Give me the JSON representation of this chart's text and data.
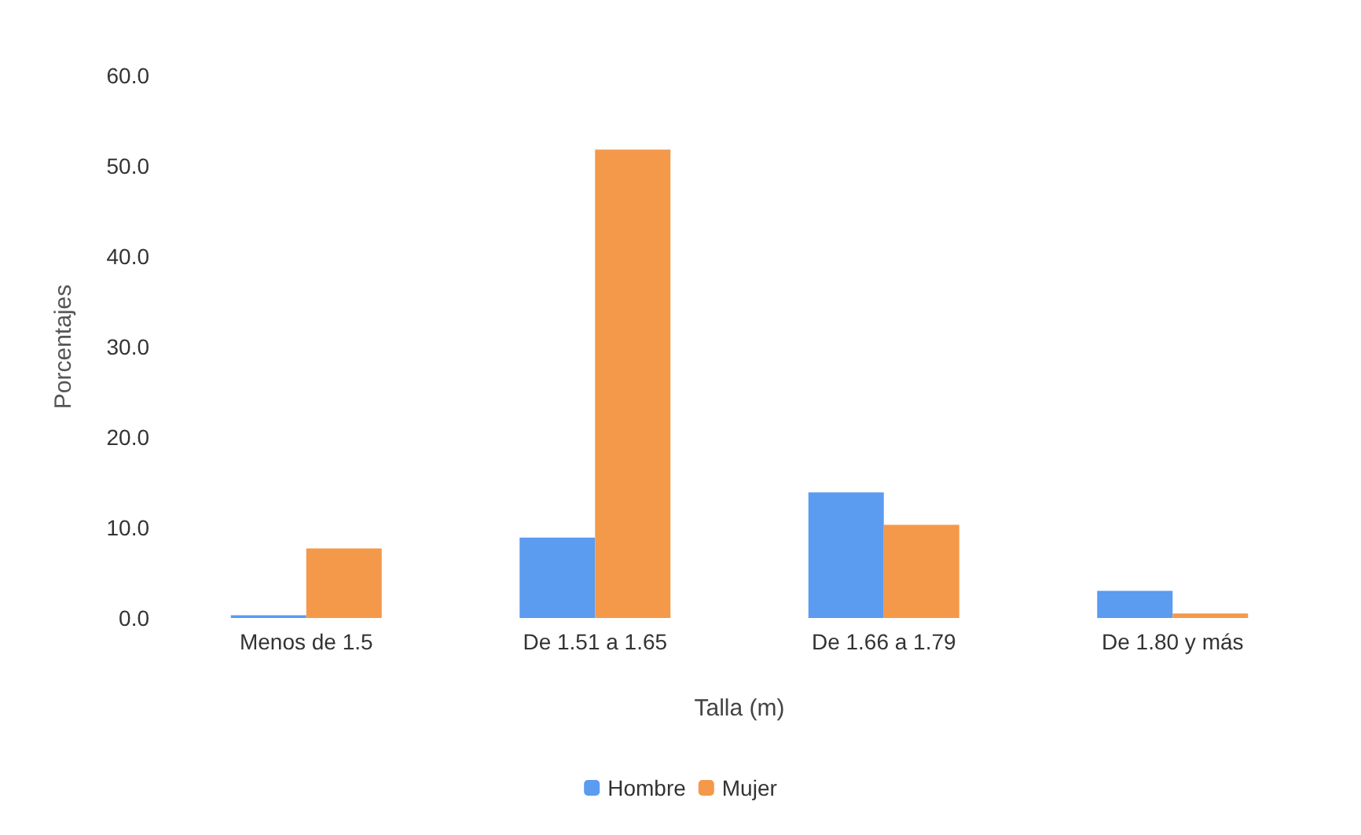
{
  "chart_data": {
    "type": "bar",
    "xlabel": "Talla (m)",
    "ylabel": "Porcentajes",
    "categories": [
      "Menos de 1.5",
      "De 1.51 a 1.65",
      "De 1.66 a 1.79",
      "De 1.80 y más"
    ],
    "series": [
      {
        "name": "Hombre",
        "color": "#5b9bf0",
        "values": [
          0.3,
          8.9,
          13.9,
          3.0
        ]
      },
      {
        "name": "Mujer",
        "color": "#f4994a",
        "values": [
          7.7,
          51.8,
          10.3,
          0.5
        ]
      }
    ],
    "ylim": [
      0,
      60
    ],
    "yticks": [
      {
        "value": 0,
        "label": "0.0"
      },
      {
        "value": 10,
        "label": "10.0"
      },
      {
        "value": 20,
        "label": "20.0"
      },
      {
        "value": 30,
        "label": "30.0"
      },
      {
        "value": 40,
        "label": "40.0"
      },
      {
        "value": 50,
        "label": "50.0"
      },
      {
        "value": 60,
        "label": "60.0"
      }
    ],
    "grid": false,
    "legend": "bottom"
  }
}
